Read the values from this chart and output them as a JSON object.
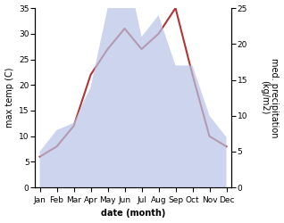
{
  "months": [
    "Jan",
    "Feb",
    "Mar",
    "Apr",
    "May",
    "Jun",
    "Jul",
    "Aug",
    "Sep",
    "Oct",
    "Nov",
    "Dec"
  ],
  "temperature": [
    6,
    8,
    12,
    22,
    27,
    31,
    27,
    30,
    35,
    22,
    10,
    8
  ],
  "precipitation": [
    5,
    8,
    9,
    14,
    25,
    32,
    21,
    24,
    17,
    17,
    10,
    7
  ],
  "temp_color": "#b03535",
  "precip_fill_color": "#b8c4e8",
  "precip_fill_alpha": 0.7,
  "temp_ylim": [
    0,
    35
  ],
  "precip_ylim": [
    0,
    25
  ],
  "temp_yticks": [
    0,
    5,
    10,
    15,
    20,
    25,
    30,
    35
  ],
  "precip_yticks": [
    0,
    5,
    10,
    15,
    20,
    25
  ],
  "xlabel": "date (month)",
  "ylabel_left": "max temp (C)",
  "ylabel_right": "med. precipitation\n(kg/m2)",
  "label_fontsize": 7,
  "tick_fontsize": 6.5
}
